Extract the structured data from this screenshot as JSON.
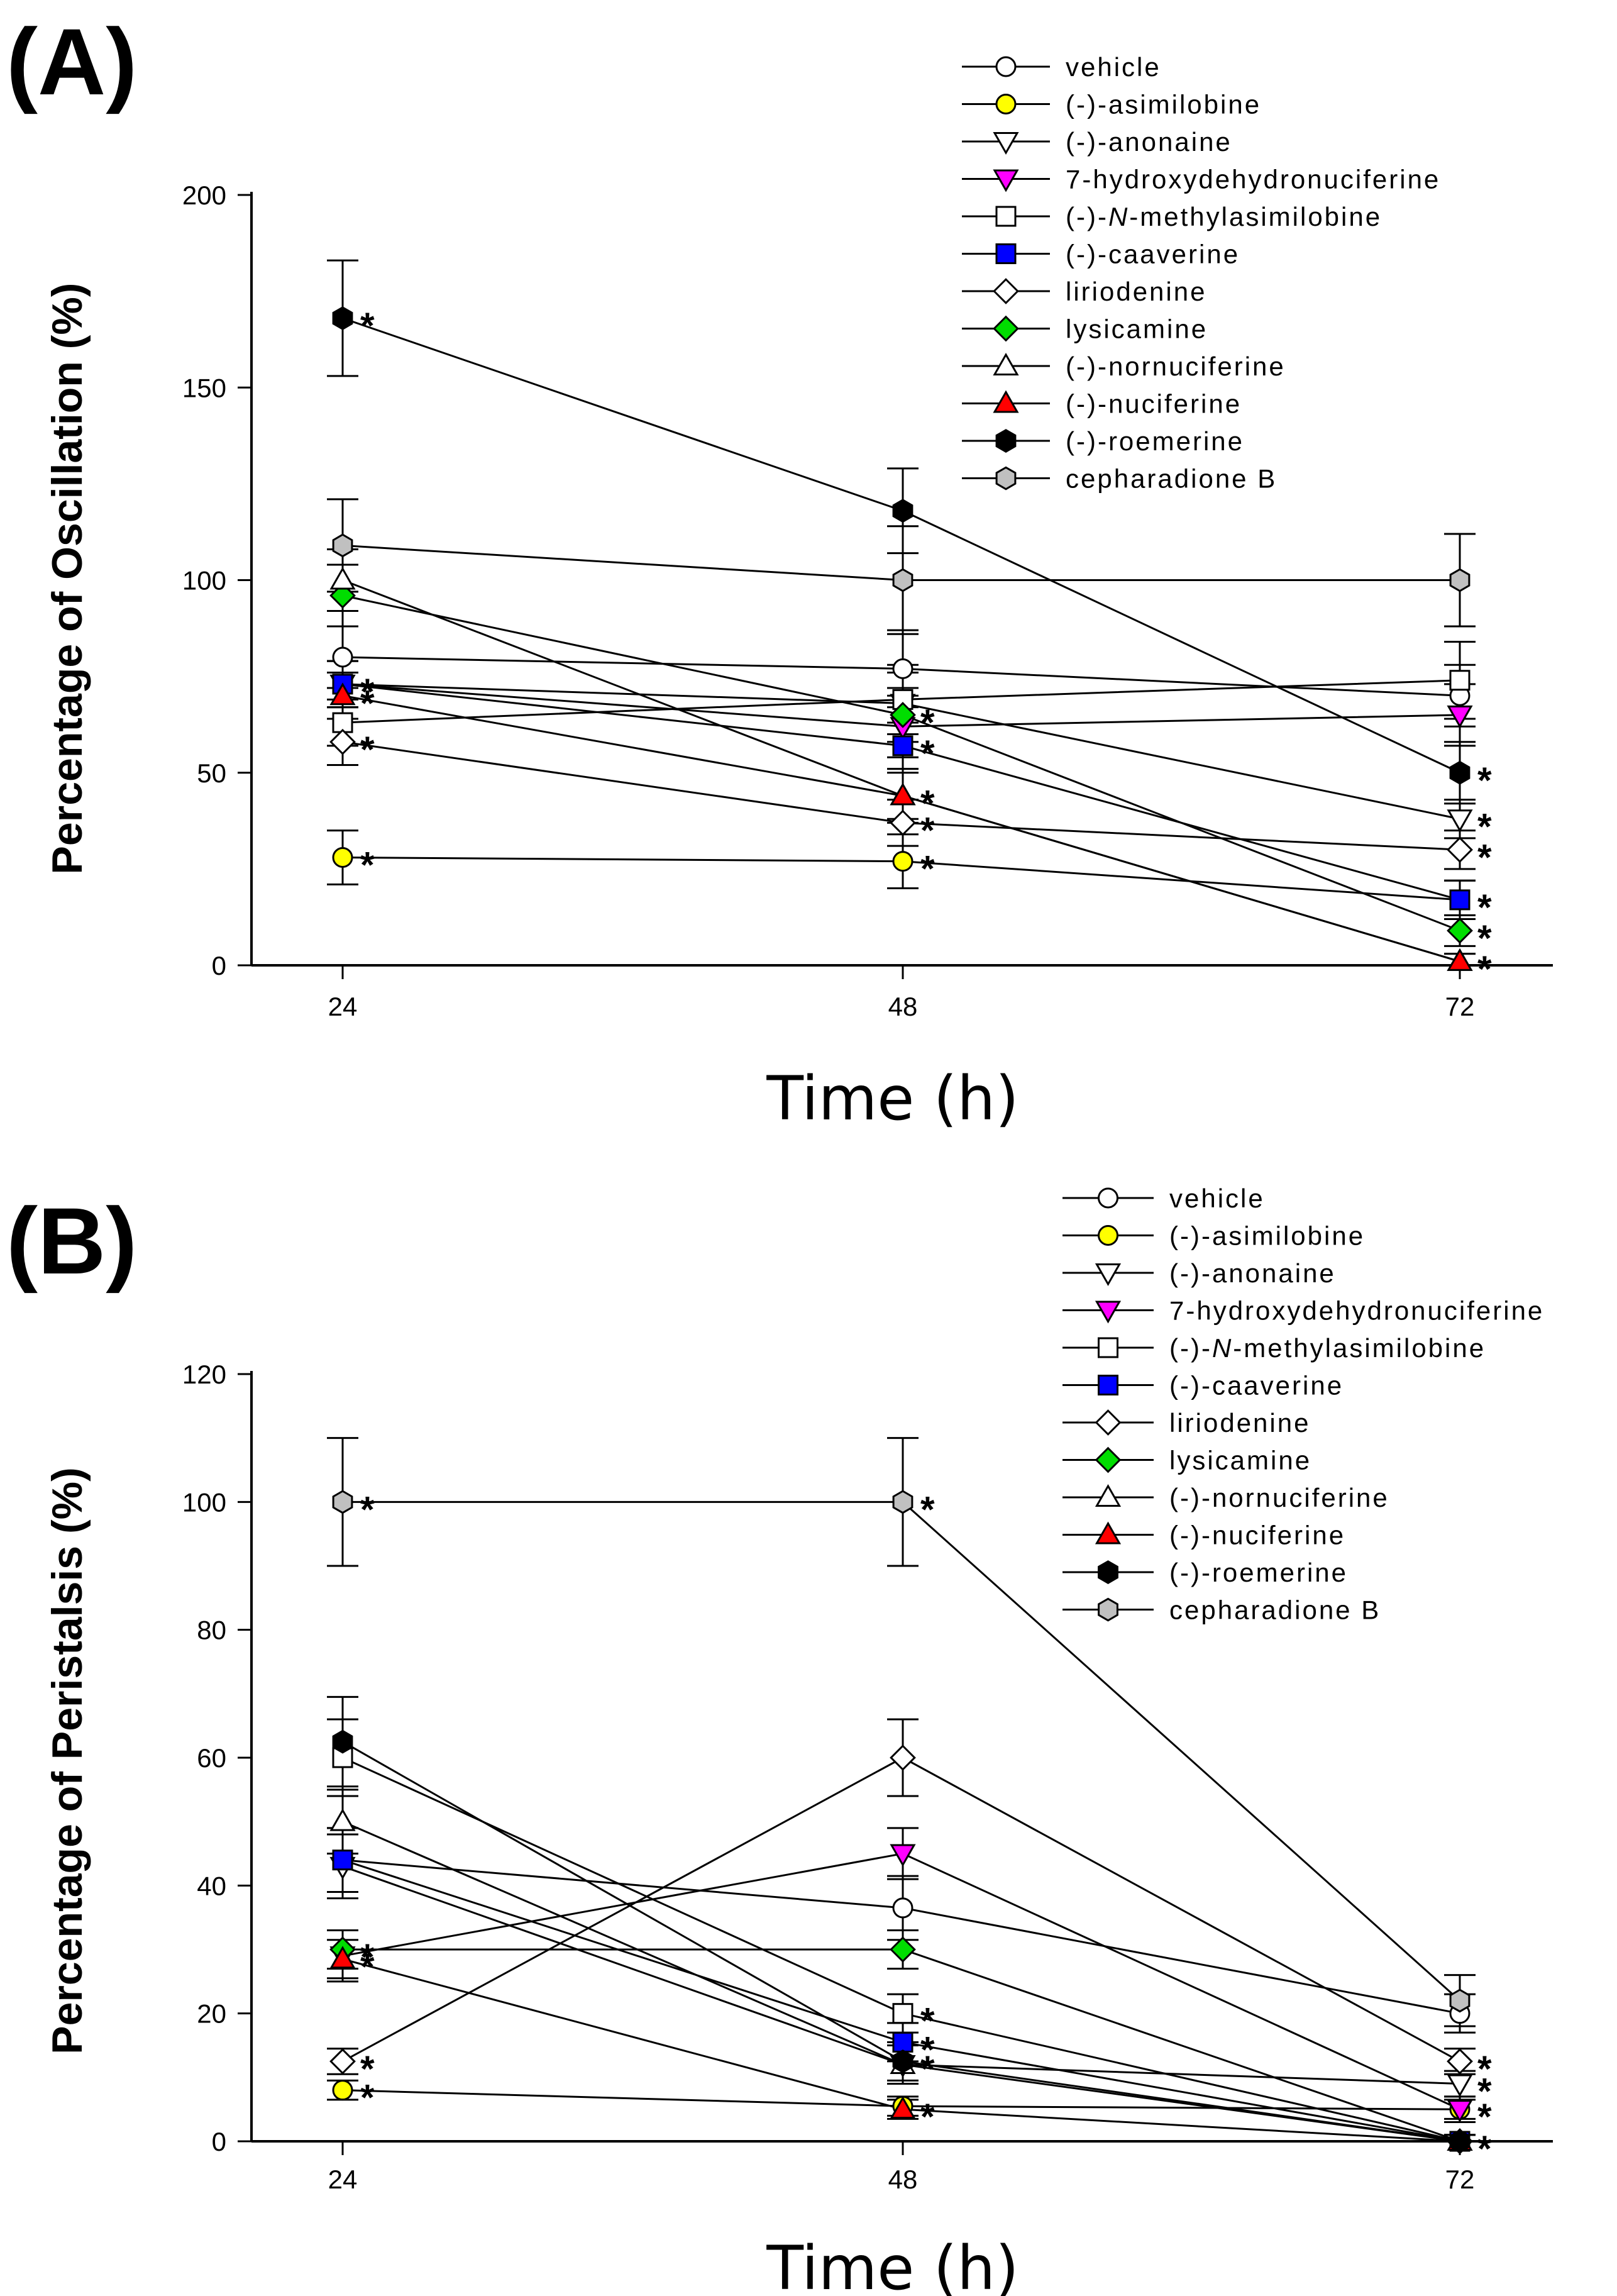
{
  "chart_data": [
    {
      "type": "line",
      "panel_label": "(A)",
      "ylabel": "Percentage of Oscillation (%)",
      "xlabel": "Time (h)",
      "x": [
        24,
        48,
        72
      ],
      "x_ticks": [
        "24",
        "48",
        "72"
      ],
      "ylim": [
        0,
        200
      ],
      "y_ticks": [
        "0",
        "50",
        "100",
        "150",
        "200"
      ],
      "legend_position": "top-right",
      "series": [
        {
          "name": "vehicle",
          "values": [
            80,
            77,
            70
          ],
          "err": [
            8,
            10,
            8
          ],
          "marker": "circle",
          "color": "#ffffff",
          "sig": [
            false,
            false,
            false
          ]
        },
        {
          "name": "(-)-asimilobine",
          "values": [
            28,
            27,
            17
          ],
          "err": [
            7,
            7,
            5
          ],
          "marker": "circle",
          "color": "#ffff00",
          "sig": [
            true,
            true,
            false
          ]
        },
        {
          "name": "(-)-anonaine",
          "values": [
            73,
            68,
            38
          ],
          "err": [
            6,
            8,
            5
          ],
          "marker": "triangle-down",
          "color": "#ffffff",
          "sig": [
            true,
            false,
            true
          ]
        },
        {
          "name": "7-hydroxydehydronuciferine",
          "values": [
            73,
            62,
            65
          ],
          "err": [
            6,
            8,
            8
          ],
          "marker": "triangle-down",
          "color": "#ff00ff",
          "sig": [
            false,
            false,
            false
          ]
        },
        {
          "name": "(-)-N-methylasimilobine",
          "name_prefix": "(-)-",
          "name_italic": "N",
          "name_suffix": "-methylasimilobine",
          "values": [
            63,
            69,
            74
          ],
          "err": [
            6,
            9,
            10
          ],
          "marker": "square",
          "color": "#ffffff",
          "sig": [
            false,
            false,
            false
          ]
        },
        {
          "name": "(-)-caaverine",
          "values": [
            73,
            57,
            17
          ],
          "err": [
            6,
            6,
            5
          ],
          "marker": "square",
          "color": "#0000ff",
          "sig": [
            false,
            true,
            true
          ]
        },
        {
          "name": "liriodenine",
          "values": [
            58,
            37,
            30
          ],
          "err": [
            6,
            6,
            5
          ],
          "marker": "diamond",
          "color": "#ffffff",
          "sig": [
            true,
            true,
            true
          ]
        },
        {
          "name": "lysicamine",
          "values": [
            96,
            65,
            9
          ],
          "err": [
            8,
            7,
            4
          ],
          "marker": "diamond",
          "color": "#00dd00",
          "sig": [
            false,
            true,
            true
          ]
        },
        {
          "name": "(-)-nornuciferine",
          "values": [
            100,
            44,
            1
          ],
          "err": [
            8,
            7,
            2
          ],
          "marker": "triangle-up",
          "color": "#ffffff",
          "sig": [
            false,
            false,
            false
          ]
        },
        {
          "name": "(-)-nuciferine",
          "values": [
            70,
            44,
            1
          ],
          "err": [
            6,
            6,
            2
          ],
          "marker": "triangle-up",
          "color": "#ff0000",
          "sig": [
            true,
            true,
            true
          ]
        },
        {
          "name": "(-)-roemerine",
          "values": [
            168,
            118,
            50
          ],
          "err": [
            15,
            11,
            8
          ],
          "marker": "hexagon",
          "color": "#000000",
          "sig": [
            true,
            false,
            true
          ]
        },
        {
          "name": "cepharadione B",
          "values": [
            109,
            100,
            100
          ],
          "err": [
            12,
            14,
            12
          ],
          "marker": "hexagon",
          "color": "#c0c0c0",
          "sig": [
            false,
            false,
            false
          ]
        }
      ]
    },
    {
      "type": "line",
      "panel_label": "(B)",
      "ylabel": "Percentage of Peristalsis (%)",
      "xlabel": "Time (h)",
      "x": [
        24,
        48,
        72
      ],
      "x_ticks": [
        "24",
        "48",
        "72"
      ],
      "ylim": [
        0,
        120
      ],
      "y_ticks": [
        "0",
        "20",
        "40",
        "60",
        "80",
        "100",
        "120"
      ],
      "legend_position": "top-right",
      "series": [
        {
          "name": "vehicle",
          "values": [
            44,
            36.5,
            20
          ],
          "err": [
            5,
            5,
            3
          ],
          "marker": "circle",
          "color": "#ffffff",
          "sig": [
            false,
            false,
            false
          ]
        },
        {
          "name": "(-)-asimilobine",
          "values": [
            8,
            5.5,
            5
          ],
          "err": [
            1.5,
            1.5,
            1.5
          ],
          "marker": "circle",
          "color": "#ffff00",
          "sig": [
            true,
            false,
            false
          ]
        },
        {
          "name": "(-)-anonaine",
          "values": [
            43,
            12,
            9
          ],
          "err": [
            5,
            3,
            2
          ],
          "marker": "triangle-down",
          "color": "#ffffff",
          "sig": [
            false,
            false,
            true
          ]
        },
        {
          "name": "7-hydroxydehydronuciferine",
          "values": [
            29,
            45,
            5
          ],
          "err": [
            4,
            4,
            2
          ],
          "marker": "triangle-down",
          "color": "#ff00ff",
          "sig": [
            false,
            false,
            true
          ]
        },
        {
          "name": "(-)-N-methylasimilobine",
          "name_prefix": "(-)-",
          "name_italic": "N",
          "name_suffix": "-methylasimilobine",
          "values": [
            60,
            20,
            0
          ],
          "err": [
            6,
            3,
            1
          ],
          "marker": "square",
          "color": "#ffffff",
          "sig": [
            false,
            true,
            false
          ]
        },
        {
          "name": "(-)-caaverine",
          "values": [
            44,
            15.5,
            0
          ],
          "err": [
            5,
            3,
            1
          ],
          "marker": "square",
          "color": "#0000ff",
          "sig": [
            false,
            true,
            false
          ]
        },
        {
          "name": "liriodenine",
          "values": [
            12.5,
            60,
            12.5
          ],
          "err": [
            2,
            6,
            2
          ],
          "marker": "diamond",
          "color": "#ffffff",
          "sig": [
            true,
            false,
            true
          ]
        },
        {
          "name": "lysicamine",
          "values": [
            30,
            30,
            0
          ],
          "err": [
            3,
            3,
            1
          ],
          "marker": "diamond",
          "color": "#00dd00",
          "sig": [
            true,
            false,
            false
          ]
        },
        {
          "name": "(-)-nornuciferine",
          "values": [
            50,
            12,
            0
          ],
          "err": [
            5,
            3,
            1
          ],
          "marker": "triangle-up",
          "color": "#ffffff",
          "sig": [
            false,
            false,
            false
          ]
        },
        {
          "name": "(-)-nuciferine",
          "values": [
            28.5,
            5,
            0
          ],
          "err": [
            3,
            1.5,
            1
          ],
          "marker": "triangle-up",
          "color": "#ff0000",
          "sig": [
            true,
            true,
            false
          ]
        },
        {
          "name": "(-)-roemerine",
          "values": [
            62.5,
            12.5,
            0
          ],
          "err": [
            7,
            3,
            1
          ],
          "marker": "hexagon",
          "color": "#000000",
          "sig": [
            false,
            true,
            true
          ]
        },
        {
          "name": "cepharadione B",
          "values": [
            100,
            100,
            22
          ],
          "err": [
            10,
            10,
            4
          ],
          "marker": "hexagon",
          "color": "#c0c0c0",
          "sig": [
            true,
            true,
            false
          ]
        }
      ]
    }
  ]
}
